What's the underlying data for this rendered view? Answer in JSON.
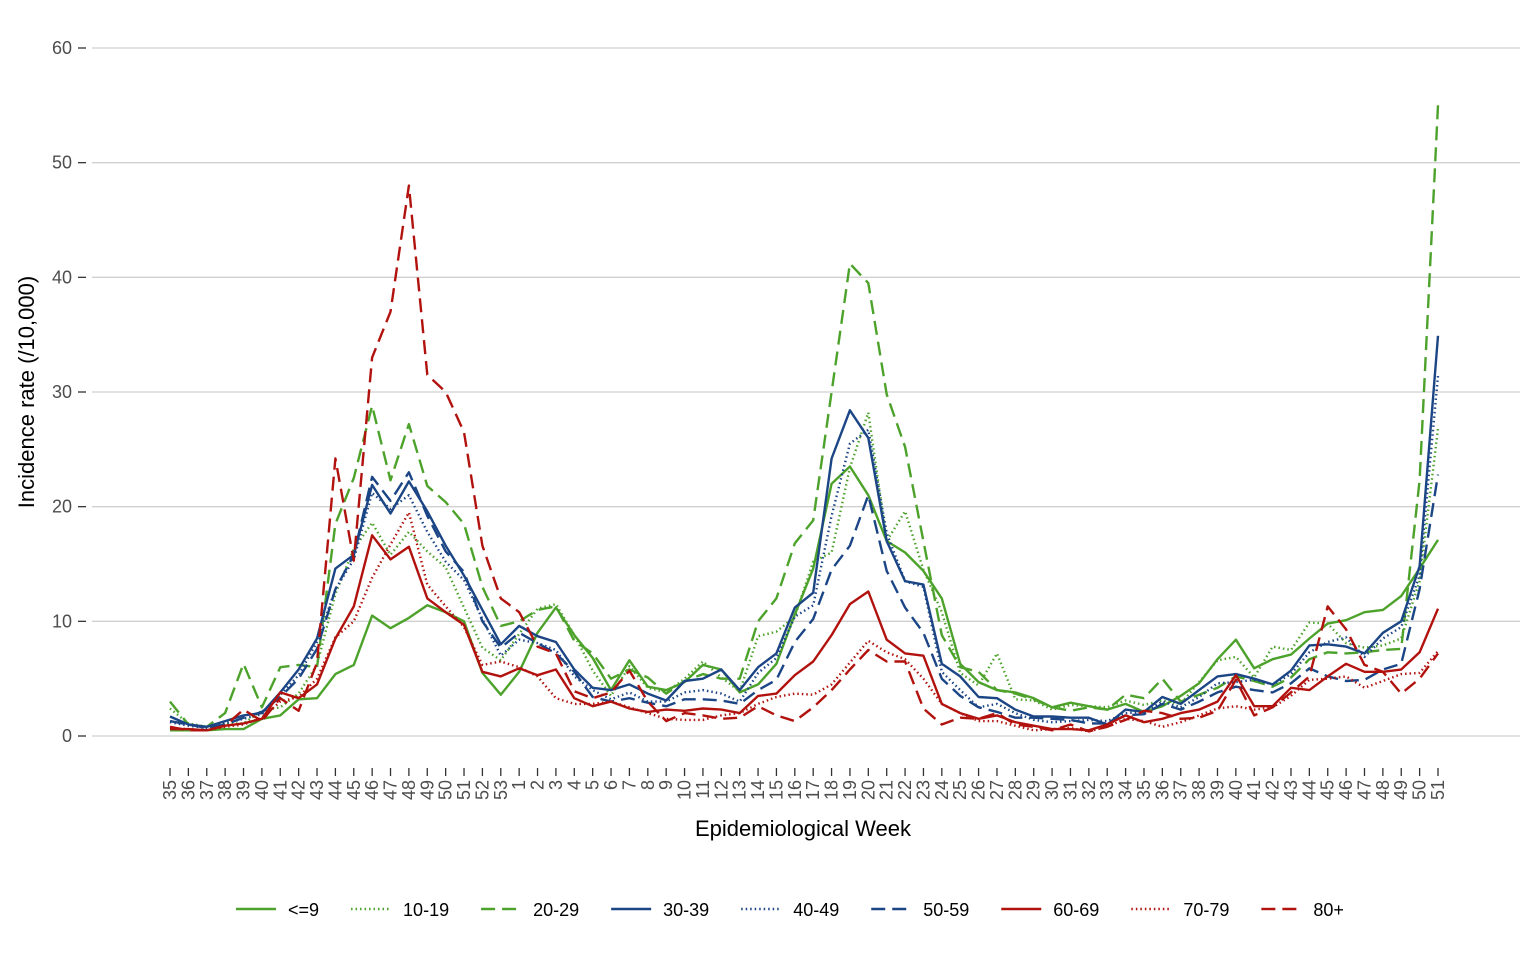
{
  "chart_data": {
    "type": "line",
    "title": "",
    "xlabel": "Epidemiological Week",
    "ylabel": "Incidence rate (/10,000)",
    "ylim": [
      0,
      60
    ],
    "yticks": [
      0,
      10,
      20,
      30,
      40,
      50,
      60
    ],
    "grid": "horizontal",
    "legend_position": "bottom",
    "x": [
      "35",
      "36",
      "37",
      "38",
      "39",
      "40",
      "41",
      "42",
      "43",
      "44",
      "45",
      "46",
      "47",
      "48",
      "49",
      "50",
      "51",
      "52",
      "53",
      "1",
      "2",
      "3",
      "4",
      "5",
      "6",
      "7",
      "8",
      "9",
      "10",
      "11",
      "12",
      "13",
      "14",
      "15",
      "16",
      "17",
      "18",
      "19",
      "20",
      "21",
      "22",
      "23",
      "24",
      "25",
      "26",
      "27",
      "28",
      "29",
      "30",
      "31",
      "32",
      "33",
      "34",
      "35",
      "36",
      "37",
      "38",
      "39",
      "40",
      "41",
      "42",
      "43",
      "44",
      "45",
      "46",
      "47",
      "48",
      "49",
      "50",
      "51"
    ],
    "series": [
      {
        "name": "<=9",
        "color": "#4ca22a",
        "dash": "solid",
        "values": [
          0.5,
          0.5,
          0.5,
          0.6,
          0.6,
          1.5,
          1.8,
          3.2,
          3.3,
          5.4,
          6.2,
          10.5,
          9.4,
          10.3,
          11.4,
          10.8,
          10.0,
          5.5,
          3.6,
          5.6,
          9.0,
          11.2,
          8.8,
          6.8,
          4.0,
          6.6,
          4.3,
          4.0,
          4.7,
          6.2,
          5.8,
          3.8,
          4.5,
          6.3,
          10.6,
          14.6,
          22.0,
          23.5,
          21.0,
          17.0,
          16.0,
          14.4,
          12.0,
          6.3,
          4.7,
          4.0,
          3.8,
          3.3,
          2.5,
          2.9,
          2.6,
          2.3,
          2.8,
          2.1,
          2.6,
          3.5,
          4.6,
          6.7,
          8.4,
          5.9,
          6.7,
          7.1,
          8.5,
          9.8,
          10.1,
          10.8,
          11.0,
          12.2,
          14.6,
          17.1
        ]
      },
      {
        "name": "10-19",
        "color": "#4ca22a",
        "dash": "1.5,3",
        "values": [
          2.4,
          1.1,
          0.8,
          1.1,
          1.1,
          2.2,
          2.5,
          3.7,
          6.2,
          12.4,
          16.3,
          18.6,
          15.8,
          17.8,
          16.1,
          14.7,
          11.2,
          7.7,
          6.6,
          8.9,
          11.1,
          11.5,
          8.8,
          5.7,
          3.5,
          6.1,
          4.2,
          3.8,
          5.0,
          6.5,
          5.1,
          3.9,
          8.7,
          9.1,
          10.4,
          15.2,
          16.0,
          23.4,
          28.2,
          17.0,
          19.6,
          14.5,
          10.8,
          5.5,
          4.4,
          7.2,
          3.2,
          3.1,
          2.3,
          2.7,
          2.6,
          2.5,
          3.1,
          2.7,
          3.1,
          2.8,
          4.7,
          6.6,
          6.9,
          5.1,
          7.8,
          7.5,
          9.9,
          9.8,
          8.1,
          7.7,
          7.9,
          8.5,
          13.5,
          26.8
        ]
      },
      {
        "name": "20-29",
        "color": "#4ca22a",
        "dash": "14,7",
        "values": [
          3.0,
          1.0,
          0.8,
          2.0,
          6.3,
          2.5,
          6.0,
          6.2,
          6.0,
          18.5,
          22.5,
          28.8,
          22.3,
          27.2,
          21.8,
          20.4,
          18.5,
          13.0,
          9.6,
          10.0,
          11.0,
          11.3,
          8.3,
          7.2,
          5.0,
          5.8,
          5.1,
          3.7,
          4.8,
          5.4,
          5.0,
          5.0,
          10.0,
          12.0,
          16.8,
          18.8,
          30.0,
          41.2,
          39.5,
          29.8,
          25.2,
          17.0,
          8.8,
          6.0,
          5.6,
          4.0,
          3.7,
          3.2,
          2.5,
          2.2,
          2.5,
          2.3,
          3.6,
          3.3,
          5.0,
          3.0,
          3.6,
          4.2,
          5.2,
          4.8,
          4.3,
          5.1,
          6.7,
          7.3,
          7.2,
          7.3,
          7.5,
          7.6,
          22.3,
          55.0
        ]
      },
      {
        "name": "30-39",
        "color": "#1b4585",
        "dash": "solid",
        "values": [
          1.7,
          1.0,
          0.8,
          1.3,
          1.8,
          2.0,
          3.8,
          5.8,
          8.5,
          14.6,
          15.8,
          21.9,
          19.4,
          22.2,
          19.6,
          16.6,
          14.0,
          11.0,
          8.0,
          9.6,
          8.7,
          8.2,
          5.8,
          4.2,
          4.0,
          4.5,
          3.7,
          3.1,
          4.8,
          5.0,
          5.8,
          4.0,
          6.0,
          7.2,
          11.2,
          12.5,
          24.2,
          28.4,
          26.0,
          17.0,
          13.5,
          13.2,
          6.3,
          5.2,
          3.4,
          3.3,
          2.3,
          1.7,
          1.7,
          1.6,
          1.6,
          1.0,
          2.3,
          2.1,
          3.4,
          2.8,
          4.0,
          5.2,
          5.4,
          5.0,
          4.5,
          5.7,
          7.9,
          8.0,
          7.8,
          7.2,
          9.0,
          10.0,
          14.8,
          34.9
        ]
      },
      {
        "name": "40-49",
        "color": "#1b4585",
        "dash": "1.5,3",
        "values": [
          1.2,
          0.9,
          0.7,
          1.1,
          1.5,
          1.9,
          3.6,
          5.3,
          8.2,
          12.8,
          15.4,
          21.2,
          19.8,
          21.0,
          17.8,
          15.2,
          13.6,
          10.2,
          7.0,
          8.4,
          8.1,
          7.5,
          5.2,
          4.0,
          3.2,
          3.8,
          3.0,
          3.0,
          3.8,
          4.0,
          3.7,
          3.0,
          5.5,
          6.8,
          10.4,
          11.4,
          19.2,
          25.5,
          26.7,
          17.7,
          13.5,
          13.0,
          5.6,
          4.0,
          2.5,
          2.8,
          2.0,
          1.4,
          1.2,
          1.3,
          1.4,
          1.3,
          2.0,
          2.1,
          3.0,
          2.5,
          3.4,
          4.6,
          4.7,
          4.9,
          4.5,
          5.4,
          7.3,
          8.2,
          8.6,
          6.9,
          8.5,
          9.5,
          14.0,
          31.4
        ]
      },
      {
        "name": "50-59",
        "color": "#1b4585",
        "dash": "14,7",
        "values": [
          1.3,
          1.0,
          0.7,
          1.0,
          1.6,
          2.1,
          3.4,
          5.0,
          7.6,
          12.8,
          15.8,
          22.6,
          20.5,
          23.0,
          19.2,
          16.1,
          14.3,
          10.0,
          7.7,
          9.0,
          8.1,
          7.2,
          5.6,
          3.4,
          3.0,
          3.3,
          2.9,
          2.6,
          3.2,
          3.2,
          3.1,
          2.8,
          4.0,
          4.9,
          8.2,
          10.2,
          14.5,
          16.6,
          21.0,
          14.4,
          11.2,
          9.0,
          5.0,
          3.5,
          2.5,
          2.1,
          1.6,
          1.6,
          1.5,
          1.4,
          1.1,
          1.1,
          1.8,
          1.9,
          2.8,
          2.3,
          3.0,
          3.8,
          4.3,
          4.0,
          3.8,
          4.6,
          5.9,
          5.2,
          4.8,
          4.9,
          5.8,
          6.3,
          12.8,
          22.8
        ]
      },
      {
        "name": "60-69",
        "color": "#b2120e",
        "dash": "solid",
        "values": [
          0.6,
          0.6,
          0.5,
          0.9,
          1.1,
          1.5,
          3.8,
          3.3,
          4.5,
          8.5,
          11.3,
          17.5,
          15.4,
          16.5,
          12.0,
          10.8,
          9.7,
          5.6,
          5.2,
          5.9,
          5.3,
          5.8,
          3.3,
          2.6,
          3.0,
          2.4,
          2.1,
          2.3,
          2.2,
          2.4,
          2.3,
          2.0,
          3.5,
          3.7,
          5.3,
          6.5,
          8.8,
          11.5,
          12.6,
          8.4,
          7.2,
          7.0,
          2.8,
          2.0,
          1.5,
          1.8,
          1.2,
          0.9,
          0.6,
          0.6,
          0.5,
          1.0,
          1.8,
          1.2,
          1.5,
          2.0,
          2.3,
          3.0,
          5.3,
          2.6,
          2.6,
          4.2,
          4.0,
          5.2,
          6.3,
          5.6,
          5.6,
          5.8,
          7.3,
          11.1
        ]
      },
      {
        "name": "70-79",
        "color": "#b2120e",
        "dash": "1.5,3",
        "values": [
          0.7,
          0.6,
          0.5,
          0.8,
          1.0,
          1.6,
          3.0,
          3.4,
          5.0,
          8.6,
          10.0,
          13.8,
          16.7,
          19.5,
          13.2,
          11.3,
          9.5,
          6.2,
          6.5,
          6.0,
          5.2,
          3.3,
          2.8,
          2.8,
          3.0,
          2.5,
          2.0,
          1.5,
          1.4,
          1.4,
          1.8,
          2.0,
          2.8,
          3.4,
          3.7,
          3.6,
          4.5,
          6.4,
          8.3,
          7.3,
          6.7,
          5.0,
          2.8,
          2.0,
          1.3,
          1.3,
          0.9,
          0.5,
          0.6,
          0.7,
          0.4,
          0.8,
          1.5,
          1.3,
          0.8,
          1.2,
          1.8,
          2.4,
          2.6,
          2.3,
          2.5,
          3.5,
          4.9,
          5.0,
          5.2,
          4.2,
          4.8,
          5.4,
          5.5,
          7.4
        ]
      },
      {
        "name": "80+",
        "color": "#b2120e",
        "dash": "14,7",
        "values": [
          0.8,
          0.5,
          0.5,
          0.9,
          2.3,
          1.3,
          3.3,
          2.2,
          6.4,
          24.2,
          15.3,
          33.0,
          37.0,
          48.0,
          31.5,
          30.0,
          26.5,
          16.6,
          12.0,
          10.8,
          7.8,
          7.2,
          3.9,
          3.3,
          3.8,
          5.7,
          3.0,
          1.3,
          2.0,
          1.8,
          1.5,
          1.6,
          2.6,
          1.8,
          1.3,
          2.5,
          4.0,
          5.8,
          7.5,
          6.5,
          6.5,
          2.4,
          1.0,
          1.6,
          1.5,
          2.0,
          1.0,
          0.8,
          0.5,
          1.0,
          0.4,
          0.8,
          1.4,
          2.2,
          2.0,
          1.5,
          1.6,
          2.2,
          4.9,
          1.8,
          2.5,
          3.8,
          5.2,
          11.3,
          9.3,
          6.2,
          5.6,
          3.7,
          5.0,
          7.2
        ]
      }
    ]
  }
}
